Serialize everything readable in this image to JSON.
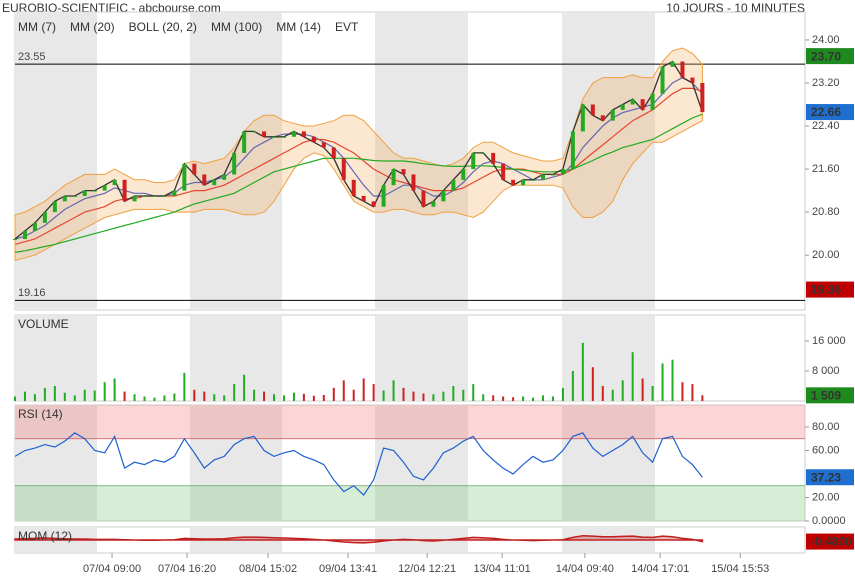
{
  "header": {
    "title": "EUROBIO-SCIENTIFIC - abcbourse.com",
    "period": "10 JOURS - 10 MINUTES"
  },
  "x_axis": {
    "xlim": [
      0,
      79.3
    ],
    "xticks": [
      {
        "value": 9.74,
        "label": "07/04 09:00"
      },
      {
        "value": 17.27,
        "label": "07/04 16:20"
      },
      {
        "value": 25.4,
        "label": "08/04 15:02"
      },
      {
        "value": 33.43,
        "label": "09/04 13:41"
      },
      {
        "value": 41.37,
        "label": "12/04 12:21"
      },
      {
        "value": 48.9,
        "label": "13/04 11:01"
      },
      {
        "value": 57.2,
        "label": "14/04 09:40"
      },
      {
        "value": 64.76,
        "label": "14/04 17:01"
      },
      {
        "value": 72.8,
        "label": "15/04 15:53"
      }
    ]
  },
  "chart_data": [
    {
      "type": "line",
      "ylim": [
        18.98,
        24.52
      ],
      "yticks": [
        {
          "value": 24,
          "label": "24.00"
        },
        {
          "value": 23.2,
          "label": "23.20"
        },
        {
          "value": 22.4,
          "label": "22.40"
        },
        {
          "value": 21.6,
          "label": "21.60"
        },
        {
          "value": 20.8,
          "label": "20.80"
        },
        {
          "value": 20,
          "label": "20.00"
        }
      ],
      "hlines": [
        23.55,
        19.16
      ],
      "price": {
        "color": "#333333",
        "values": [
          20.3,
          20.45,
          20.6,
          20.8,
          21.0,
          21.1,
          21.1,
          21.2,
          21.2,
          21.3,
          21.4,
          21.0,
          21.1,
          21.1,
          21.1,
          21.1,
          21.2,
          21.7,
          21.5,
          21.3,
          21.4,
          21.5,
          21.9,
          22.3,
          22.3,
          22.2,
          22.2,
          22.2,
          22.3,
          22.2,
          22.1,
          22.0,
          21.8,
          21.4,
          21.1,
          21.0,
          20.9,
          21.3,
          21.6,
          21.5,
          21.2,
          20.9,
          21.0,
          21.2,
          21.4,
          21.6,
          21.9,
          21.9,
          21.7,
          21.4,
          21.3,
          21.4,
          21.4,
          21.5,
          21.5,
          21.6,
          22.3,
          22.8,
          22.6,
          22.5,
          22.7,
          22.8,
          22.9,
          22.7,
          23.0,
          23.5,
          23.6,
          23.3,
          23.2,
          22.66
        ]
      },
      "series": [
        {
          "name": "MM (7)",
          "color": "#2a4fd6",
          "values": [
            20.3,
            20.35,
            20.45,
            20.55,
            20.7,
            20.85,
            20.95,
            21.05,
            21.1,
            21.15,
            21.25,
            21.2,
            21.15,
            21.15,
            21.1,
            21.1,
            21.15,
            21.3,
            21.35,
            21.35,
            21.4,
            21.45,
            21.6,
            21.8,
            22.0,
            22.1,
            22.2,
            22.25,
            22.25,
            22.25,
            22.2,
            22.1,
            22.0,
            21.8,
            21.55,
            21.3,
            21.1,
            21.1,
            21.2,
            21.3,
            21.3,
            21.2,
            21.1,
            21.1,
            21.2,
            21.35,
            21.55,
            21.7,
            21.75,
            21.7,
            21.6,
            21.5,
            21.4,
            21.4,
            21.45,
            21.5,
            21.7,
            22.0,
            22.2,
            22.4,
            22.55,
            22.65,
            22.7,
            22.75,
            22.8,
            23.0,
            23.2,
            23.3,
            23.2,
            23.0
          ]
        },
        {
          "name": "MM (20)",
          "color": "#e02020",
          "values": [
            20.2,
            20.25,
            20.3,
            20.4,
            20.5,
            20.6,
            20.7,
            20.8,
            20.85,
            20.9,
            21.0,
            21.05,
            21.05,
            21.1,
            21.1,
            21.1,
            21.1,
            21.15,
            21.2,
            21.2,
            21.25,
            21.3,
            21.4,
            21.5,
            21.6,
            21.7,
            21.8,
            21.9,
            22.0,
            22.1,
            22.15,
            22.15,
            22.1,
            22.0,
            21.9,
            21.75,
            21.6,
            21.5,
            21.4,
            21.35,
            21.3,
            21.25,
            21.2,
            21.2,
            21.2,
            21.25,
            21.35,
            21.45,
            21.55,
            21.6,
            21.6,
            21.6,
            21.55,
            21.5,
            21.5,
            21.5,
            21.6,
            21.75,
            21.9,
            22.05,
            22.2,
            22.35,
            22.5,
            22.6,
            22.7,
            22.85,
            23.0,
            23.1,
            23.1,
            23.05
          ]
        },
        {
          "name": "BOLL (20, 2)",
          "color": "#f0a040",
          "values": [
            20.75,
            20.8,
            20.9,
            21.0,
            21.15,
            21.3,
            21.4,
            21.5,
            21.5,
            21.5,
            21.6,
            21.5,
            21.4,
            21.4,
            21.35,
            21.35,
            21.4,
            21.7,
            21.75,
            21.7,
            21.75,
            21.8,
            22.0,
            22.3,
            22.5,
            22.6,
            22.6,
            22.5,
            22.45,
            22.4,
            22.4,
            22.45,
            22.5,
            22.6,
            22.6,
            22.5,
            22.3,
            22.1,
            21.9,
            21.8,
            21.8,
            21.75,
            21.7,
            21.65,
            21.7,
            21.8,
            22.0,
            22.1,
            22.1,
            22.0,
            21.9,
            21.85,
            21.8,
            21.75,
            21.75,
            21.8,
            22.3,
            22.9,
            23.2,
            23.3,
            23.3,
            23.3,
            23.35,
            23.3,
            23.3,
            23.6,
            23.8,
            23.85,
            23.75,
            23.55
          ],
          "lower": [
            19.9,
            19.95,
            20.0,
            20.1,
            20.2,
            20.3,
            20.4,
            20.5,
            20.6,
            20.7,
            20.75,
            20.8,
            20.85,
            20.85,
            20.85,
            20.85,
            20.8,
            20.8,
            20.8,
            20.85,
            20.85,
            20.85,
            20.8,
            20.75,
            20.75,
            20.8,
            21.0,
            21.3,
            21.6,
            21.8,
            21.9,
            21.85,
            21.6,
            21.3,
            21.0,
            20.9,
            20.8,
            20.8,
            20.85,
            20.85,
            20.8,
            20.75,
            20.75,
            20.8,
            20.8,
            20.75,
            20.7,
            20.8,
            21.0,
            21.2,
            21.3,
            21.3,
            21.3,
            21.3,
            21.3,
            21.25,
            20.9,
            20.7,
            20.7,
            20.8,
            21.0,
            21.4,
            21.7,
            21.9,
            22.1,
            22.1,
            22.2,
            22.3,
            22.4,
            22.5
          ]
        },
        {
          "name": "MM (100)",
          "color": "#22aa22",
          "values": [
            20.05,
            20.08,
            20.12,
            20.16,
            20.2,
            20.25,
            20.3,
            20.35,
            20.4,
            20.45,
            20.5,
            20.55,
            20.6,
            20.65,
            20.7,
            20.75,
            20.8,
            20.88,
            20.95,
            21.0,
            21.05,
            21.1,
            21.15,
            21.25,
            21.35,
            21.45,
            21.55,
            21.6,
            21.65,
            21.7,
            21.75,
            21.8,
            21.8,
            21.8,
            21.8,
            21.78,
            21.76,
            21.75,
            21.75,
            21.75,
            21.73,
            21.7,
            21.68,
            21.66,
            21.65,
            21.65,
            21.66,
            21.66,
            21.65,
            21.63,
            21.6,
            21.58,
            21.56,
            21.55,
            21.55,
            21.56,
            21.6,
            21.68,
            21.76,
            21.85,
            21.92,
            22.0,
            22.05,
            22.1,
            22.15,
            22.25,
            22.35,
            22.45,
            22.55,
            22.62
          ]
        }
      ],
      "legend_extra": [
        "MM (14)",
        "EVT"
      ],
      "markers": [
        {
          "value": 23.7,
          "label": "23.70",
          "color": "#1e8a1e"
        },
        {
          "value": 22.66,
          "label": "22.66",
          "color": "#1e6fd0"
        },
        {
          "value": 19.36,
          "label": "19.36",
          "color": "#c00000"
        }
      ]
    },
    {
      "type": "bar",
      "title": "VOLUME",
      "title_color": "#22aa22",
      "ylim": [
        0,
        22900
      ],
      "yticks": [
        {
          "value": 16000,
          "label": "16 000"
        },
        {
          "value": 8000,
          "label": "8 000"
        }
      ],
      "up_color": "#22aa22",
      "down_color": "#d02020",
      "values": [
        1200,
        2500,
        1800,
        3500,
        4000,
        2200,
        1500,
        3000,
        2800,
        5000,
        6000,
        2500,
        1800,
        1200,
        900,
        1500,
        2000,
        7500,
        3000,
        2500,
        1800,
        1500,
        4500,
        7000,
        3000,
        2500,
        1800,
        1500,
        2200,
        1900,
        1400,
        1600,
        3500,
        5500,
        3000,
        6000,
        4500,
        2800,
        5500,
        3500,
        2500,
        2000,
        1800,
        2500,
        4000,
        3000,
        4500,
        1800,
        1500,
        1200,
        1000,
        1200,
        900,
        1500,
        1200,
        3500,
        8000,
        15500,
        9000,
        4000,
        3000,
        5500,
        13000,
        6000,
        4000,
        10000,
        11000,
        5000,
        4500,
        1509
      ],
      "markers": [
        {
          "value": 1509,
          "label": "1 509",
          "color": "#1e8a1e"
        }
      ]
    },
    {
      "type": "line",
      "title": "RSI (14)",
      "title_color": "#2a4fd6",
      "ylim": [
        0,
        98.7
      ],
      "yticks": [
        {
          "value": 80,
          "label": "80.00"
        },
        {
          "value": 60,
          "label": "60.00"
        },
        {
          "value": 20,
          "label": "20.00"
        },
        {
          "value": 0,
          "label": "0.0000"
        }
      ],
      "levels": [
        70,
        30
      ],
      "series": [
        {
          "color": "#1e5fd0",
          "values": [
            55,
            60,
            62,
            65,
            63,
            68,
            75,
            70,
            60,
            58,
            72,
            45,
            50,
            48,
            52,
            50,
            55,
            70,
            58,
            45,
            52,
            55,
            65,
            70,
            72,
            60,
            55,
            58,
            60,
            55,
            52,
            48,
            35,
            25,
            30,
            22,
            35,
            62,
            60,
            50,
            38,
            35,
            45,
            58,
            62,
            68,
            72,
            60,
            52,
            45,
            40,
            48,
            55,
            50,
            52,
            60,
            72,
            75,
            62,
            55,
            60,
            65,
            72,
            58,
            50,
            70,
            72,
            55,
            48,
            37.23
          ]
        }
      ],
      "markers": [
        {
          "value": 37.23,
          "color": "#1e6fd0"
        }
      ]
    },
    {
      "type": "line",
      "title": "MOM (12)",
      "title_color": "#c02020",
      "ylim": [
        -4,
        4
      ],
      "series": [
        {
          "color": "#c02020",
          "fill_to_zero": true,
          "values": [
            0.3,
            0.4,
            0.5,
            0.6,
            0.5,
            0.4,
            0.3,
            0.3,
            0.2,
            0.2,
            0.2,
            0.1,
            0.0,
            -0.1,
            -0.1,
            0.0,
            0.1,
            0.5,
            0.4,
            0.3,
            0.3,
            0.4,
            0.7,
            0.9,
            0.9,
            0.8,
            0.7,
            0.6,
            0.5,
            0.4,
            0.2,
            0.0,
            -0.3,
            -0.6,
            -0.8,
            -0.9,
            -0.7,
            -0.3,
            0.0,
            0.2,
            0.1,
            -0.2,
            -0.3,
            -0.1,
            0.2,
            0.5,
            0.8,
            0.7,
            0.5,
            0.2,
            0.0,
            -0.1,
            -0.2,
            -0.1,
            0.0,
            0.1,
            0.8,
            1.3,
            1.2,
            1.0,
            1.0,
            1.1,
            1.2,
            0.9,
            0.8,
            1.2,
            1.0,
            0.5,
            0.2,
            -0.48
          ]
        }
      ],
      "markers": [
        {
          "value": -0.48,
          "label": "-0.4800",
          "color": "#c00000"
        }
      ]
    }
  ]
}
